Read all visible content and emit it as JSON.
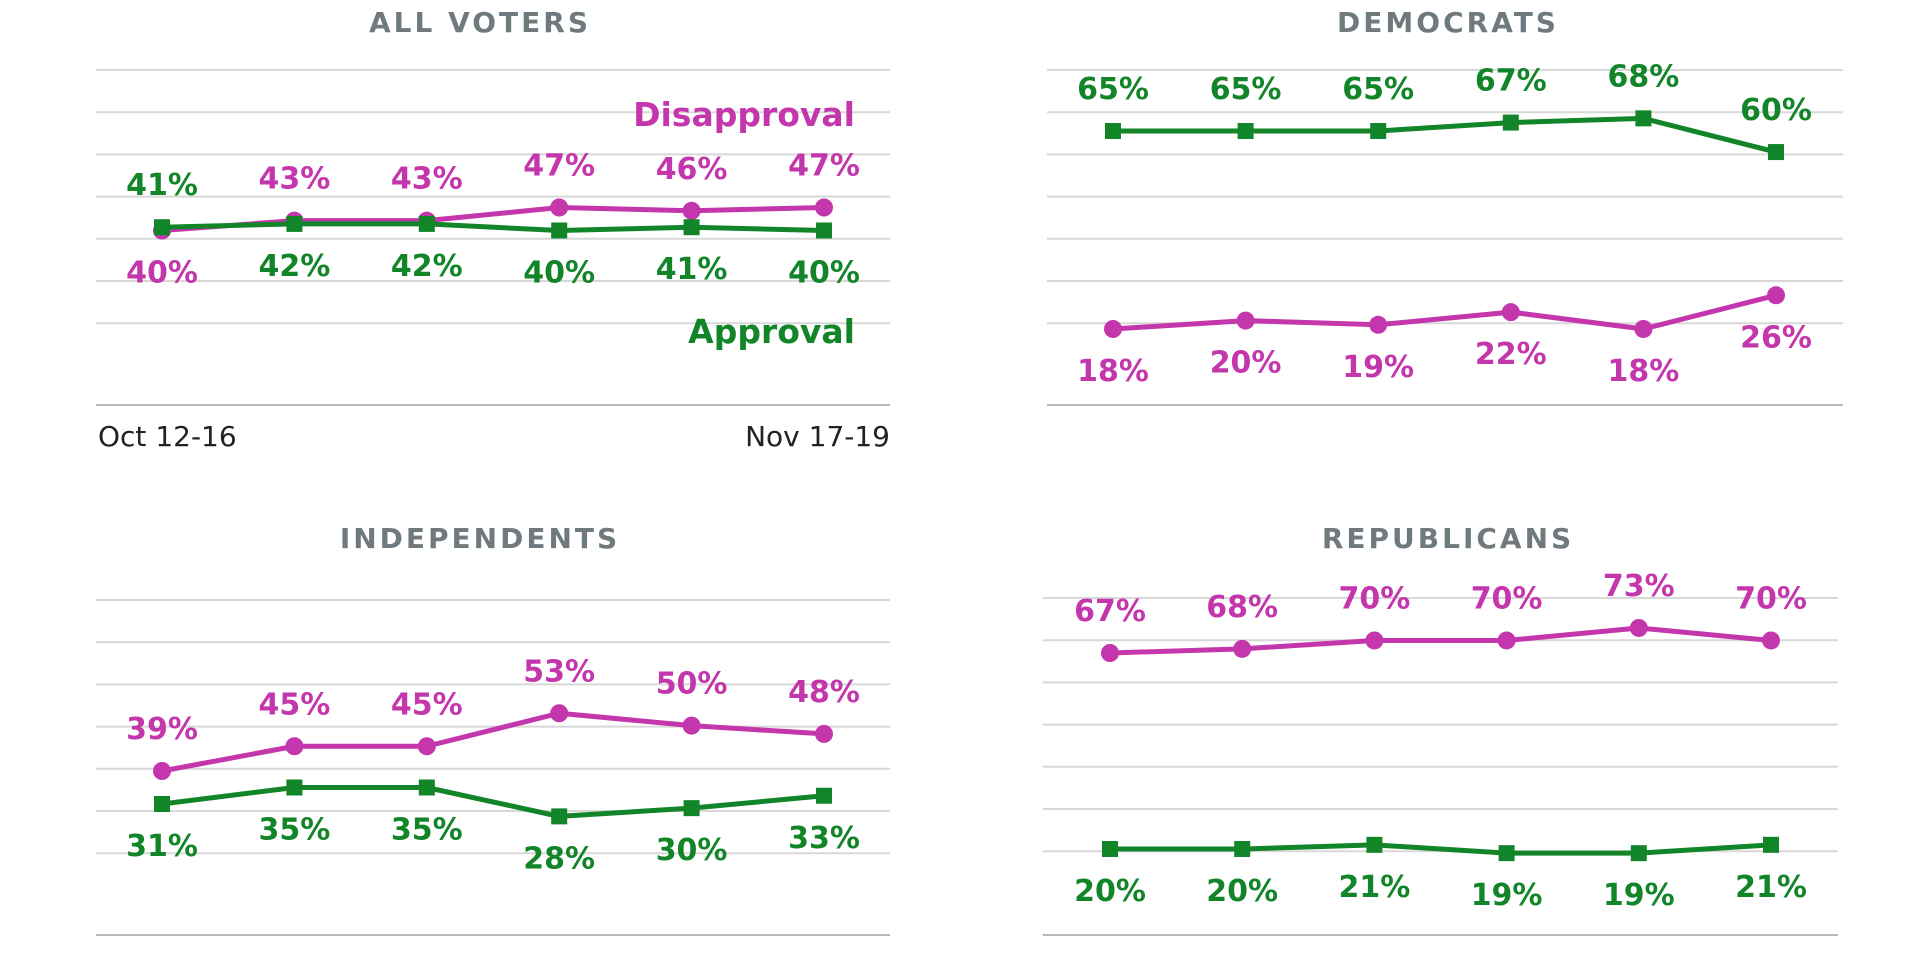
{
  "colors": {
    "approval": "#128529",
    "disapproval": "#c436ab",
    "title": "#707a7e"
  },
  "chart_data": [
    {
      "type": "line",
      "title": "ALL VOTERS",
      "x": [
        "Oct 12-16",
        "",
        "",
        "",
        "",
        "Nov 17-19"
      ],
      "x_tick_labels_shown": [
        "Oct 12-16",
        "Nov 17-19"
      ],
      "ylim": [
        25,
        55
      ],
      "legend": [
        "Disapproval",
        "Approval"
      ],
      "series": [
        {
          "name": "Disapproval",
          "values": [
            40,
            43,
            43,
            47,
            46,
            47
          ]
        },
        {
          "name": "Approval",
          "values": [
            41,
            42,
            42,
            40,
            41,
            40
          ]
        }
      ]
    },
    {
      "type": "line",
      "title": "DEMOCRATS",
      "x": [
        "Oct 12-16",
        "",
        "",
        "",
        "",
        "Nov 17-19"
      ],
      "ylim": [
        10,
        80
      ],
      "series": [
        {
          "name": "Approval",
          "values": [
            65,
            65,
            65,
            67,
            68,
            60
          ]
        },
        {
          "name": "Disapproval",
          "values": [
            18,
            20,
            19,
            22,
            18,
            26
          ]
        }
      ]
    },
    {
      "type": "line",
      "title": "INDEPENDENTS",
      "x": [
        "Oct 12-16",
        "",
        "",
        "",
        "",
        "Nov 17-19"
      ],
      "ylim": [
        20,
        60
      ],
      "series": [
        {
          "name": "Disapproval",
          "values": [
            39,
            45,
            45,
            53,
            50,
            48
          ]
        },
        {
          "name": "Approval",
          "values": [
            31,
            35,
            35,
            28,
            30,
            33
          ]
        }
      ]
    },
    {
      "type": "line",
      "title": "REPUBLICANS",
      "x": [
        "Oct 12-16",
        "",
        "",
        "",
        "",
        "Nov 17-19"
      ],
      "ylim": [
        10,
        80
      ],
      "series": [
        {
          "name": "Disapproval",
          "values": [
            67,
            68,
            70,
            70,
            73,
            70
          ]
        },
        {
          "name": "Approval",
          "values": [
            20,
            20,
            21,
            19,
            19,
            21
          ]
        }
      ]
    }
  ]
}
